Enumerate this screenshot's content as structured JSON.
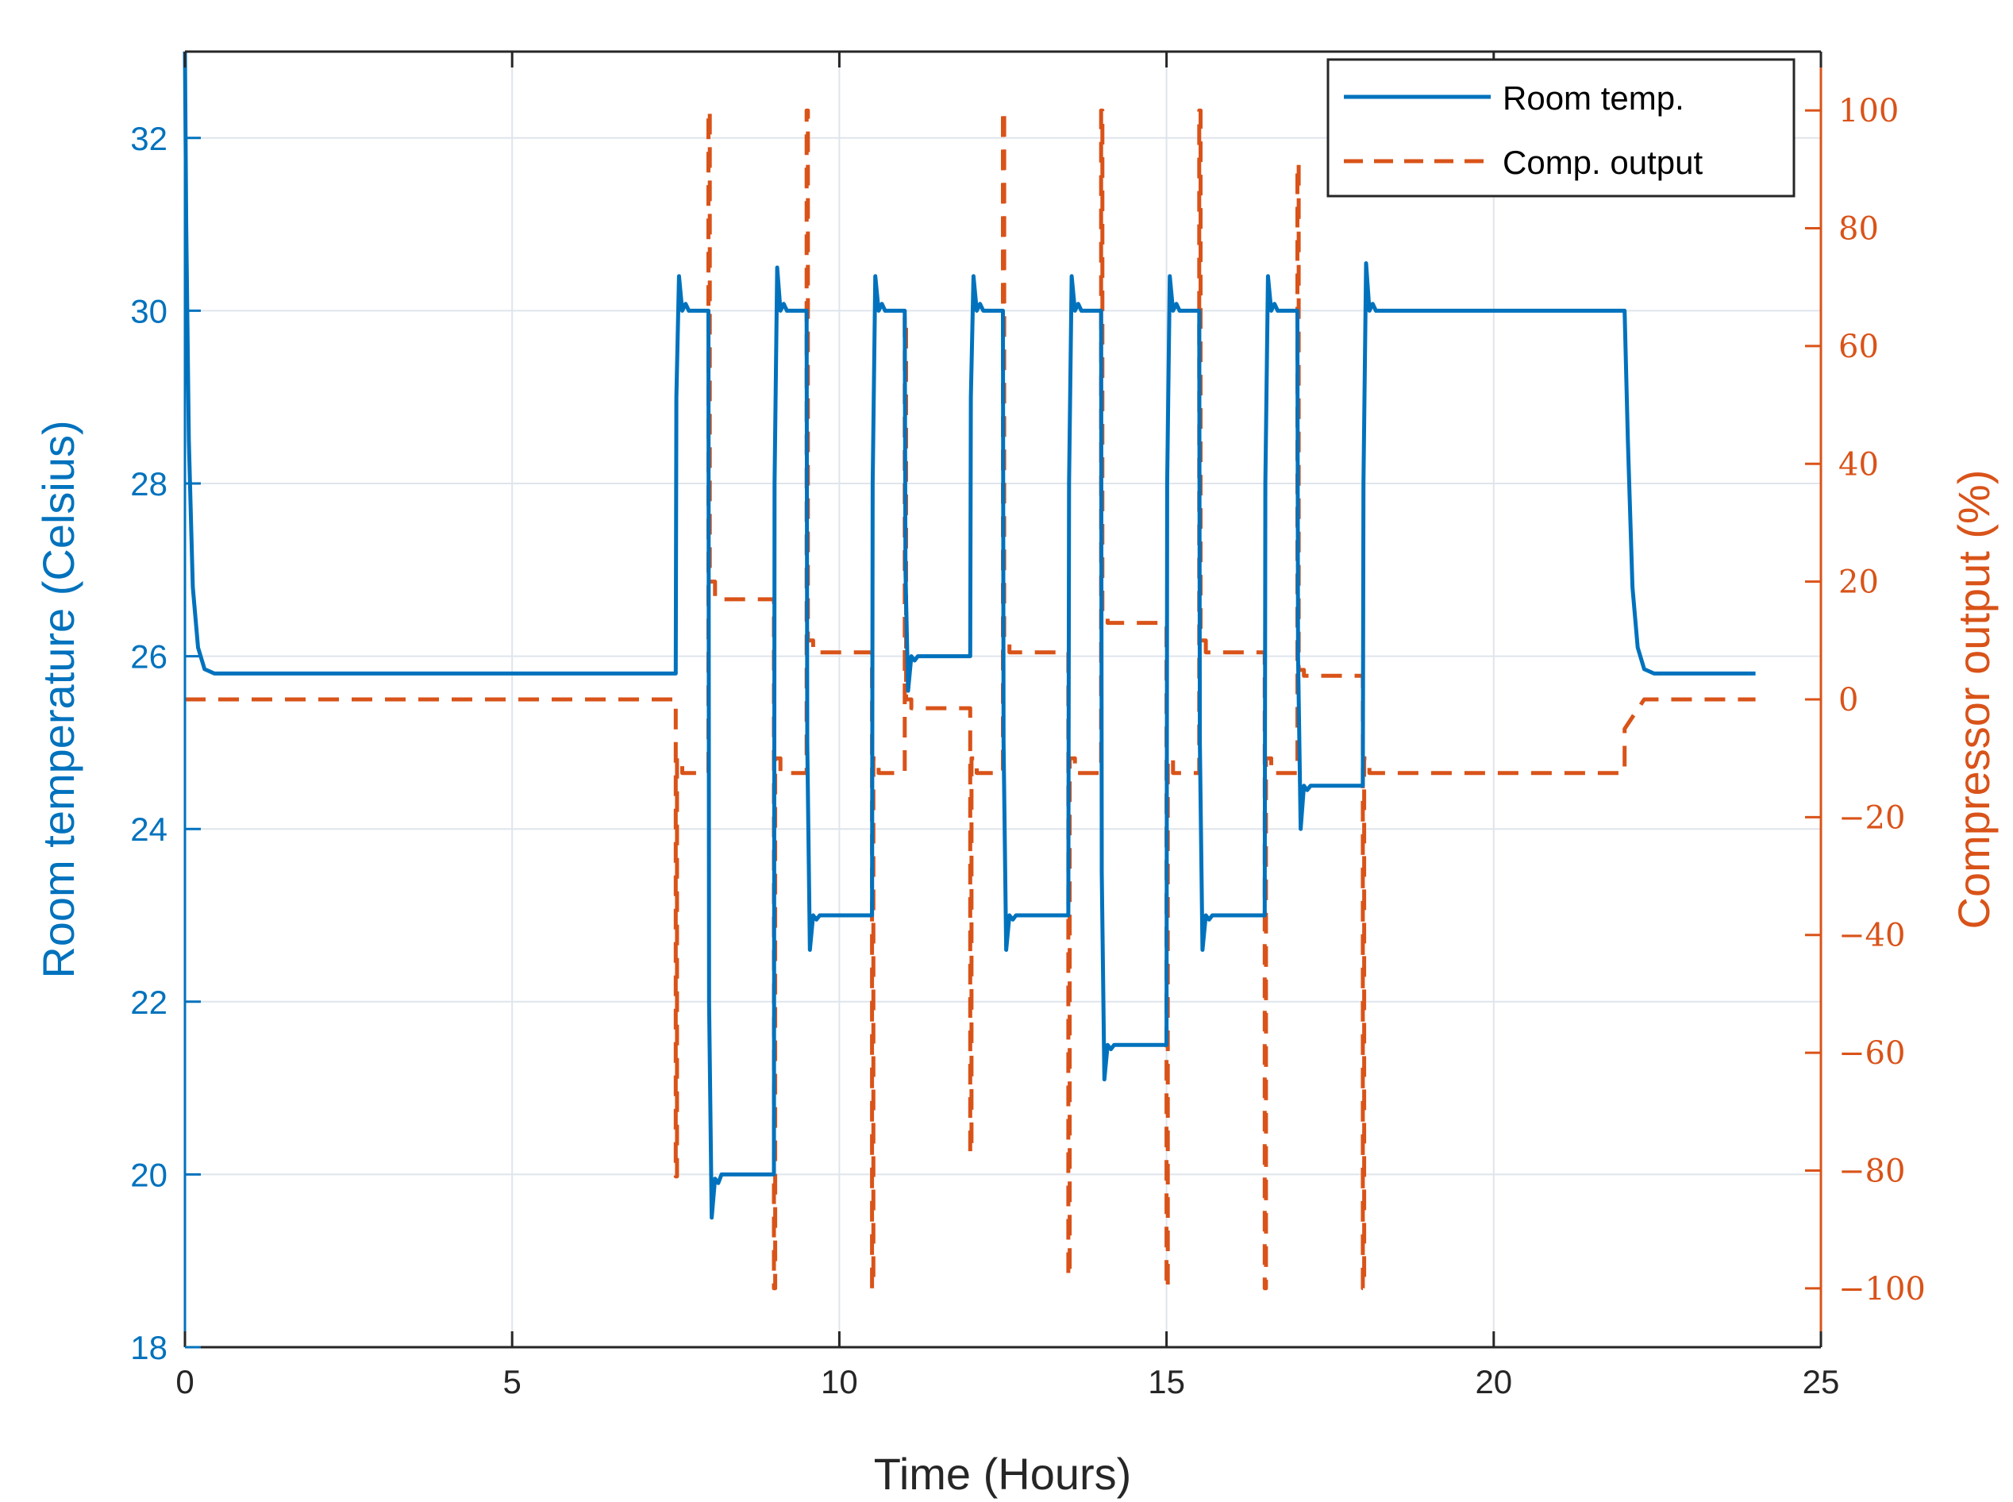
{
  "chart_data": {
    "type": "line",
    "xlabel": "Time (Hours)",
    "ylabel": "Room temperature (Celsius)",
    "y2label": "Compressor output (%)",
    "xlim": [
      0,
      25
    ],
    "ylim": [
      18,
      33
    ],
    "y2lim": [
      -110,
      110
    ],
    "x_ticks": [
      0,
      5,
      10,
      15,
      20,
      25
    ],
    "y_ticks": [
      18,
      20,
      22,
      24,
      26,
      28,
      30,
      32
    ],
    "y2_ticks": [
      -100,
      -80,
      -60,
      -40,
      -20,
      0,
      20,
      40,
      60,
      80,
      100
    ],
    "y2_tick_labels": [
      "−100",
      "−80",
      "−60",
      "−40",
      "−20",
      "0",
      "20",
      "40",
      "60",
      "80",
      "100"
    ],
    "grid": true,
    "legend_position": "top-right",
    "colors": {
      "room": "#0072BD",
      "comp": "#D95319",
      "axis": "#262626",
      "grid": "#dfe5ec"
    },
    "series": [
      {
        "name": "Room temp.",
        "axis": "left",
        "style": "solid",
        "x": [
          0,
          0.02,
          0.06,
          0.12,
          0.2,
          0.3,
          0.45,
          7.5,
          7.51,
          7.55,
          7.6,
          7.65,
          7.7,
          8.0,
          8.01,
          8.05,
          8.1,
          8.15,
          8.2,
          9.0,
          9.01,
          9.05,
          9.1,
          9.15,
          9.2,
          9.5,
          9.51,
          9.55,
          9.6,
          9.65,
          9.7,
          10.5,
          10.51,
          10.55,
          10.6,
          10.65,
          10.7,
          11.0,
          11.01,
          11.05,
          11.1,
          11.15,
          11.2,
          12.0,
          12.01,
          12.05,
          12.1,
          12.15,
          12.2,
          12.5,
          12.51,
          12.55,
          12.6,
          12.65,
          12.7,
          13.5,
          13.51,
          13.55,
          13.6,
          13.65,
          13.7,
          14.0,
          14.01,
          14.05,
          14.1,
          14.15,
          14.2,
          15.0,
          15.01,
          15.05,
          15.1,
          15.15,
          15.2,
          15.5,
          15.51,
          15.55,
          15.6,
          15.65,
          15.7,
          16.5,
          16.51,
          16.55,
          16.6,
          16.65,
          16.7,
          17.0,
          17.01,
          17.05,
          17.1,
          17.15,
          17.2,
          18.0,
          18.01,
          18.05,
          18.1,
          18.15,
          18.2,
          22.0,
          22.05,
          22.12,
          22.2,
          22.3,
          22.45,
          24.0
        ],
        "y": [
          33,
          31.0,
          28.5,
          26.8,
          26.1,
          25.85,
          25.8,
          25.8,
          29.0,
          30.4,
          30.0,
          30.08,
          30.0,
          30.0,
          22.0,
          19.5,
          19.95,
          19.9,
          20.0,
          20.0,
          28.0,
          30.5,
          30.0,
          30.08,
          30.0,
          30.0,
          25.0,
          22.6,
          23.0,
          22.95,
          23.0,
          23.0,
          28.0,
          30.4,
          30.0,
          30.08,
          30.0,
          30.0,
          27.0,
          25.6,
          26.0,
          25.95,
          26.0,
          26.0,
          29.0,
          30.4,
          30.0,
          30.08,
          30.0,
          30.0,
          25.0,
          22.6,
          23.0,
          22.95,
          23.0,
          23.0,
          28.0,
          30.4,
          30.0,
          30.08,
          30.0,
          30.0,
          23.5,
          21.1,
          21.5,
          21.45,
          21.5,
          21.5,
          28.0,
          30.4,
          30.0,
          30.08,
          30.0,
          30.0,
          25.0,
          22.6,
          23.0,
          22.95,
          23.0,
          23.0,
          28.0,
          30.4,
          30.0,
          30.08,
          30.0,
          30.0,
          26.0,
          24.0,
          24.5,
          24.45,
          24.5,
          24.5,
          28.0,
          30.55,
          30.0,
          30.08,
          30.0,
          30.0,
          28.5,
          26.8,
          26.1,
          25.85,
          25.8,
          25.8
        ]
      },
      {
        "name": "Comp. output",
        "axis": "right",
        "style": "dashed",
        "x": [
          0,
          7.5,
          7.5,
          7.52,
          7.52,
          7.6,
          7.6,
          8.0,
          8.0,
          8.02,
          8.02,
          8.1,
          8.1,
          8.2,
          9.0,
          9.0,
          9.02,
          9.02,
          9.1,
          9.1,
          9.5,
          9.5,
          9.52,
          9.52,
          9.6,
          9.6,
          10.5,
          10.5,
          10.52,
          10.52,
          10.6,
          10.6,
          11.0,
          11.0,
          11.02,
          11.02,
          11.1,
          11.1,
          12.0,
          12.0,
          12.02,
          12.02,
          12.1,
          12.1,
          12.5,
          12.5,
          12.52,
          12.52,
          12.6,
          12.6,
          13.5,
          13.5,
          13.52,
          13.52,
          13.6,
          13.6,
          14.0,
          14.0,
          14.02,
          14.02,
          14.1,
          14.1,
          15.0,
          15.0,
          15.02,
          15.02,
          15.1,
          15.1,
          15.5,
          15.5,
          15.52,
          15.52,
          15.6,
          15.6,
          16.5,
          16.5,
          16.52,
          16.52,
          16.6,
          16.6,
          17.0,
          17.0,
          17.02,
          17.02,
          17.1,
          17.1,
          18.0,
          18.0,
          18.02,
          18.02,
          18.1,
          18.1,
          22.0,
          22.0,
          22.3,
          24.0
        ],
        "y": [
          0,
          0,
          -81,
          -81,
          -10,
          -10,
          -12.5,
          -12.5,
          100,
          100,
          20,
          20,
          17,
          17,
          17,
          -100,
          -100,
          -10,
          -10,
          -12.5,
          -12.5,
          100,
          100,
          10,
          10,
          8,
          8,
          -100,
          -100,
          -10,
          -10,
          -12.5,
          -12.5,
          65,
          65,
          0,
          0,
          -1.5,
          -1.5,
          -77,
          -77,
          -10,
          -10,
          -12.5,
          -12.5,
          100,
          100,
          10,
          10,
          8,
          8,
          -98,
          -98,
          -10,
          -10,
          -12.5,
          -12.5,
          100,
          100,
          15,
          15,
          13,
          13,
          -100,
          -100,
          -10,
          -10,
          -12.5,
          -12.5,
          100,
          100,
          10,
          10,
          8,
          8,
          -100,
          -100,
          -10,
          -10,
          -12.5,
          -12.5,
          91,
          91,
          5,
          5,
          4,
          4,
          -100,
          -100,
          -10,
          -10,
          -12.5,
          -12.5,
          -5,
          0,
          0
        ]
      }
    ]
  }
}
